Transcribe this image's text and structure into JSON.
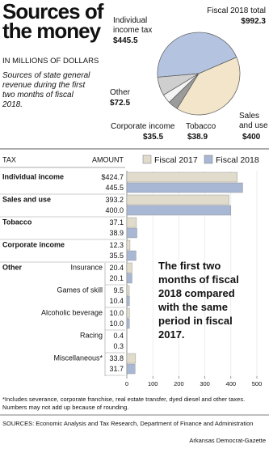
{
  "chart_data": [
    {
      "type": "pie",
      "title": "Sources of the money",
      "unit_note": "IN MILLIONS OF DOLLARS",
      "subtitle": "Sources of state general revenue during the first two months of fiscal 2018.",
      "total_title": "Fiscal 2018 total",
      "total": {
        "value": 992.3,
        "label": "$992.3"
      },
      "categories": [
        "Individual income tax",
        "Sales and use",
        "Tobacco",
        "Corporate income",
        "Other"
      ],
      "values": [
        445.5,
        400,
        38.9,
        35.5,
        72.5
      ],
      "value_labels": [
        "$445.5",
        "$400",
        "$38.9",
        "$35.5",
        "$72.5"
      ],
      "colors": [
        "#b4c3df",
        "#f2e5c9",
        "#9b9b9b",
        "#f4f4f4",
        "#cfcfcf"
      ]
    },
    {
      "type": "hbar",
      "category_header": "TAX",
      "amount_header": "AMOUNT",
      "group_label": "Other",
      "categories": [
        "Individual income",
        "Sales and use",
        "Tobacco",
        "Corporate income",
        "Insurance",
        "Games of skill",
        "Alcoholic beverage",
        "Racing",
        "Miscellaneous*"
      ],
      "series": [
        {
          "name": "Fiscal 2017",
          "color": "#e0dbcb",
          "values": [
            424.7,
            393.2,
            37.1,
            12.3,
            20.4,
            9.5,
            10.0,
            0.4,
            33.8
          ],
          "value_labels": [
            "$424.7",
            "393.2",
            "37.1",
            "12.3",
            "20.4",
            "9.5",
            "10.0",
            "0.4",
            "33.8"
          ]
        },
        {
          "name": "Fiscal 2018",
          "color": "#a8b7d4",
          "values": [
            445.5,
            400.0,
            38.9,
            35.5,
            20.1,
            10.4,
            10.0,
            0.3,
            31.7
          ],
          "value_labels": [
            "445.5",
            "400.0",
            "38.9",
            "35.5",
            "20.1",
            "10.4",
            "10.0",
            "0.3",
            "31.7"
          ]
        }
      ],
      "xlim": [
        0,
        500
      ],
      "xticks": [
        0,
        100,
        200,
        300,
        400,
        500
      ],
      "annotation": "The first two months of fiscal 2018 compared with the same period in fiscal 2017.",
      "footnote": "*Includes severance, corporate franchise, real estate transfer, dyed diesel and other taxes. Numbers may not add up because of rounding.",
      "source": "SOURCES: Economic Analysis and Tax Research, Department of Finance and Administration",
      "credit": "Arkansas Democrat-Gazette"
    }
  ]
}
